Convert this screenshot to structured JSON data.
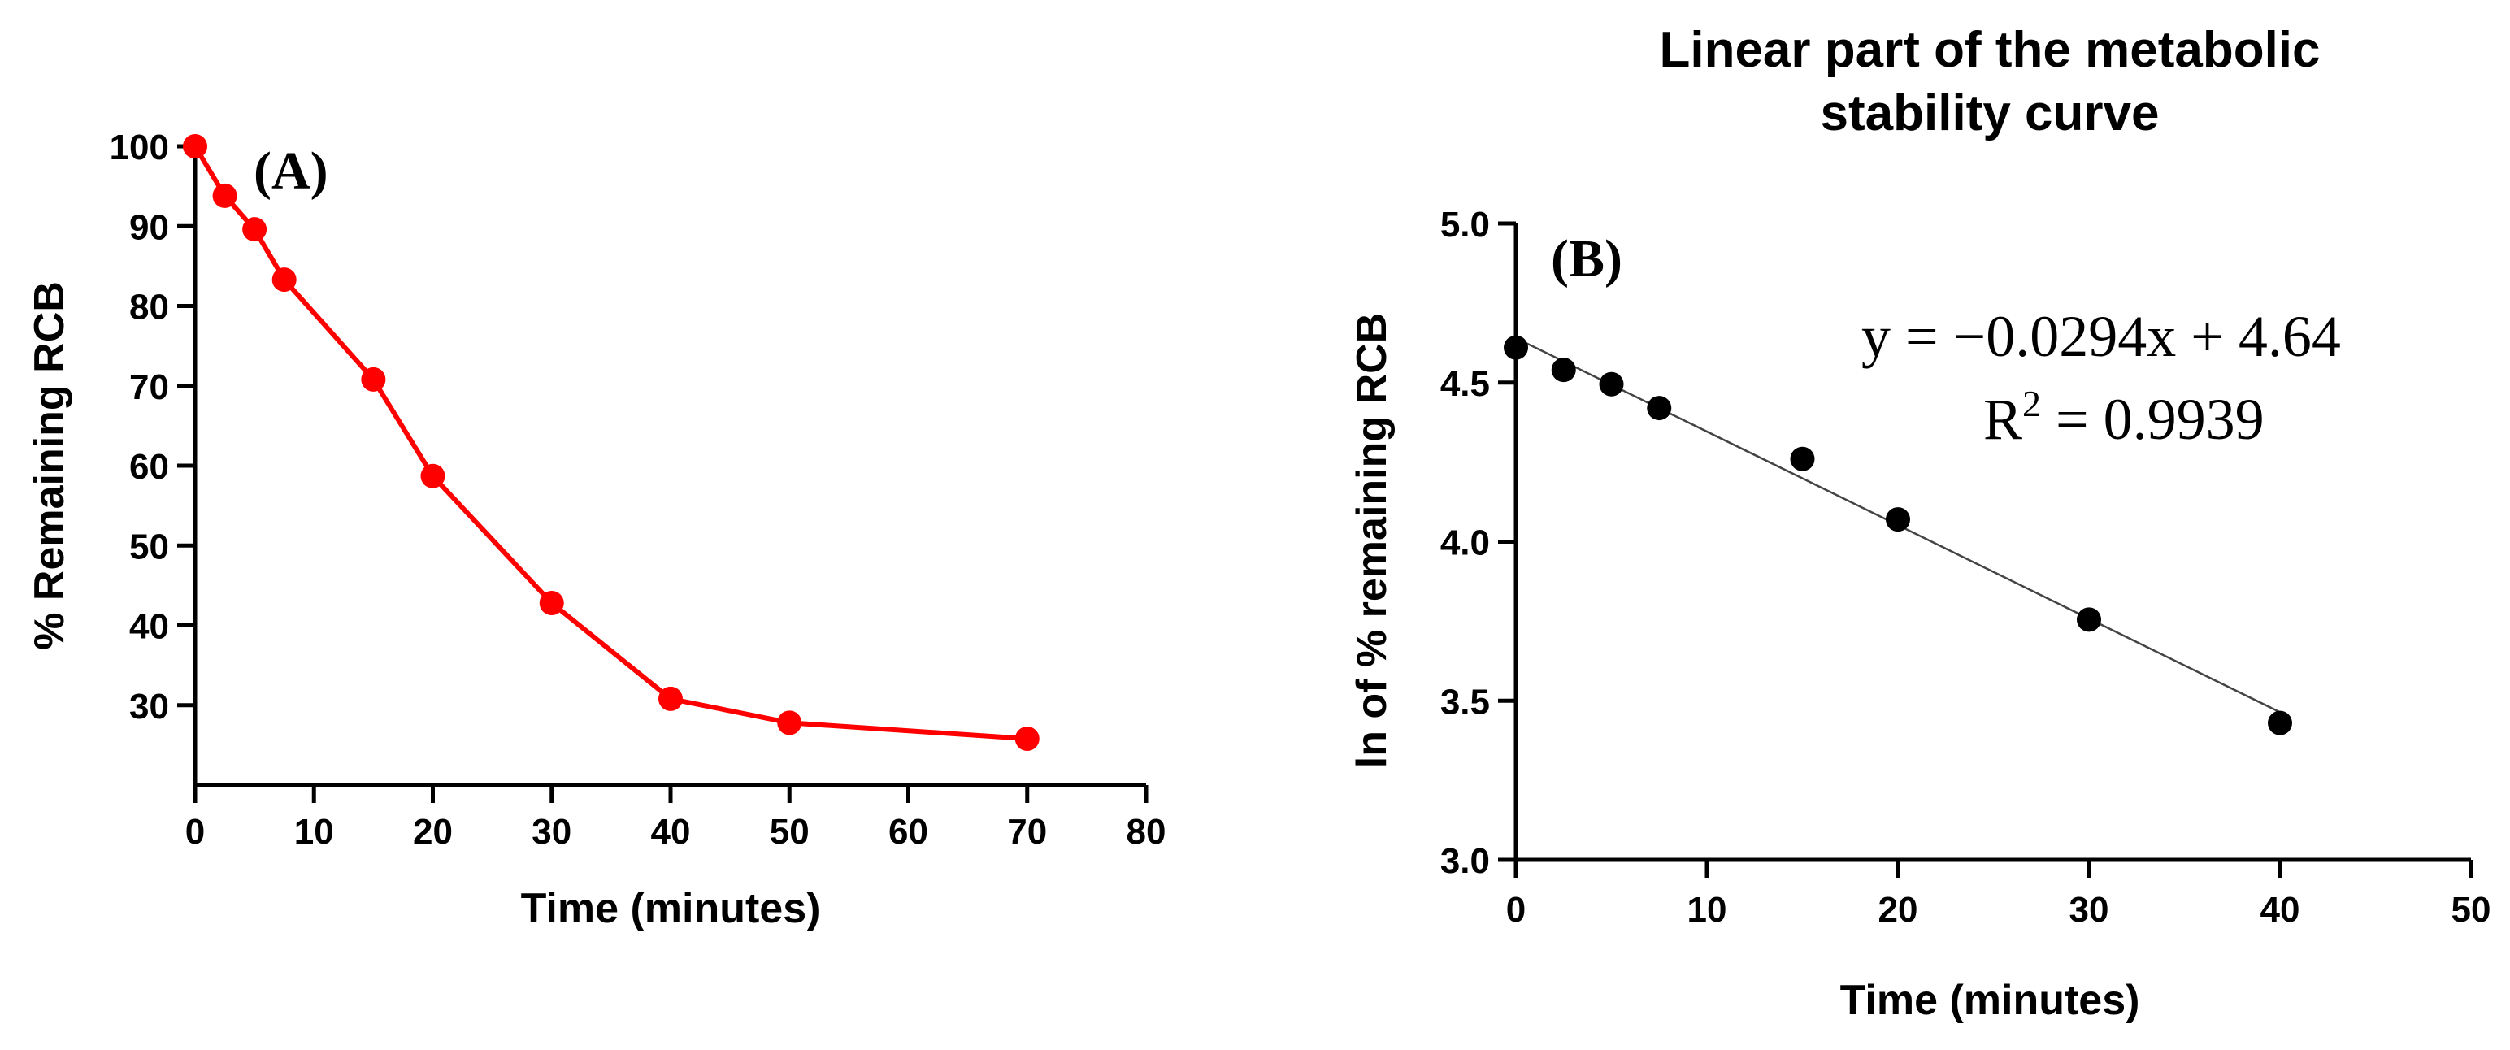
{
  "chart_data": [
    {
      "type": "line",
      "panel_label": "(A)",
      "title": "",
      "xlabel": "Time (minutes)",
      "ylabel": "% Remaining RCB",
      "xlim": [
        0,
        80
      ],
      "ylim": [
        20,
        100
      ],
      "x_ticks": [
        0,
        10,
        20,
        30,
        40,
        50,
        60,
        70,
        80
      ],
      "y_ticks": [
        30,
        40,
        50,
        60,
        70,
        80,
        90,
        100
      ],
      "grid": false,
      "color": "#ff0000",
      "series": [
        {
          "name": "% Remaining RCB",
          "x": [
            0,
            2.5,
            5,
            7.5,
            15,
            20,
            30,
            40,
            50,
            70
          ],
          "y": [
            100,
            93.8,
            89.6,
            83.3,
            70.8,
            58.7,
            42.8,
            30.8,
            27.8,
            25.8
          ]
        }
      ]
    },
    {
      "type": "scatter",
      "panel_label": "(B)",
      "title": "Linear part of the metabolic stability curve",
      "title_lines": [
        "Linear part of the metabolic",
        "stability curve"
      ],
      "xlabel": "Time (minutes)",
      "ylabel": "ln of % remaining RCB",
      "xlim": [
        0,
        50
      ],
      "ylim": [
        3.0,
        5.0
      ],
      "x_ticks": [
        0,
        10,
        20,
        30,
        40,
        50
      ],
      "y_ticks": [
        "3.0",
        "3.5",
        "4.0",
        "4.5",
        "5.0"
      ],
      "grid": false,
      "color": "#000000",
      "series": [
        {
          "name": "ln of % remaining RCB",
          "x": [
            0,
            2.5,
            5,
            7.5,
            15,
            20,
            30,
            40
          ],
          "y": [
            4.61,
            4.54,
            4.495,
            4.42,
            4.26,
            4.07,
            3.755,
            3.43
          ]
        }
      ],
      "trendline": {
        "slope": -0.0294,
        "intercept": 4.64,
        "x_range": [
          0,
          40
        ],
        "equation": "y = −0.0294x + 4.64",
        "r2_prefix": "R",
        "r2_sup": "2",
        "r2_value": " = 0.9939"
      }
    }
  ]
}
